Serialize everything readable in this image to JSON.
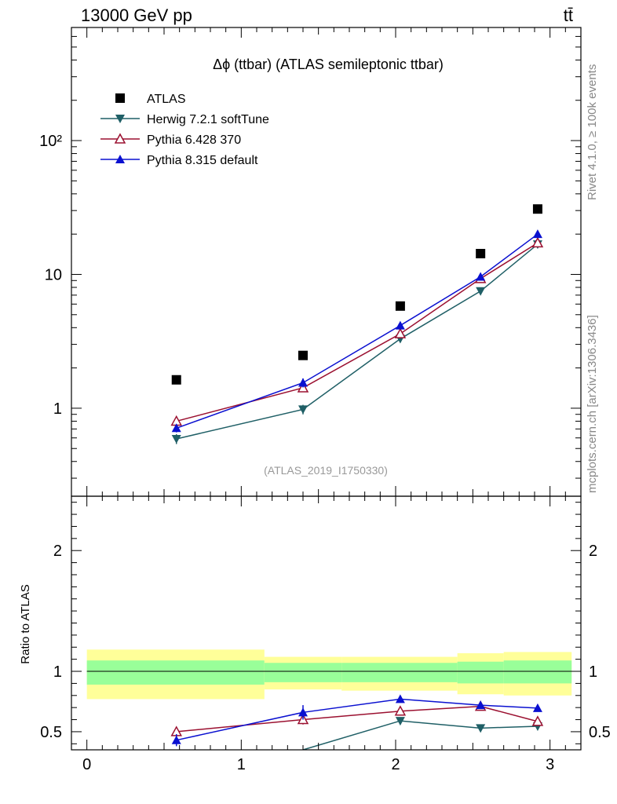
{
  "header": {
    "left": "13000 GeV pp",
    "right": "tt̄"
  },
  "side_labels": {
    "rivet": "Rivet 4.1.0, ≥ 100k events",
    "mcplots": "mcplots.cern.ch [arXiv:1306.3436]"
  },
  "colors": {
    "atlas": "#000000",
    "herwig": "#1f5f66",
    "pythia6": "#9b1030",
    "pythia8": "#0a10d0",
    "band_outer": "#ffff99",
    "band_inner": "#99ff99"
  },
  "chart_data": [
    {
      "type": "scatter",
      "title": "Δϕ (ttbar) (ATLAS semileptonic ttbar)",
      "analysis_label": "(ATLAS_2019_I1750330)",
      "yscale": "log",
      "ylim": [
        0.22,
        700
      ],
      "xlim": [
        -0.1,
        3.2
      ],
      "ytick_labels": [
        {
          "value": 1,
          "label": "1"
        },
        {
          "value": 10,
          "label": "10"
        },
        {
          "value": 100,
          "label": "10²"
        }
      ],
      "legend_position": "top-left",
      "series": [
        {
          "name": "ATLAS",
          "color_key": "atlas",
          "marker": "square",
          "line": false,
          "x": [
            0.58,
            1.4,
            2.03,
            2.55,
            2.92
          ],
          "y": [
            1.63,
            2.48,
            5.8,
            14.3,
            30.8
          ],
          "err": [
            0.02,
            0.03,
            0.06,
            0.15,
            0.3
          ]
        },
        {
          "name": "Herwig 7.2.1 softTune",
          "color_key": "herwig",
          "marker": "triangle-down",
          "line": true,
          "x": [
            0.58,
            1.4,
            2.03,
            2.55,
            2.92
          ],
          "y": [
            0.59,
            0.98,
            3.3,
            7.5,
            16.8
          ],
          "err": [
            0.05,
            0.08,
            0.12,
            0.2,
            0.3
          ]
        },
        {
          "name": "Pythia 6.428 370",
          "color_key": "pythia6",
          "marker": "triangle-up-open",
          "line": true,
          "x": [
            0.58,
            1.4,
            2.03,
            2.55,
            2.92
          ],
          "y": [
            0.8,
            1.42,
            3.6,
            9.3,
            17.2
          ],
          "err": [
            0.04,
            0.1,
            0.15,
            0.25,
            0.3
          ]
        },
        {
          "name": "Pythia 8.315 default",
          "color_key": "pythia8",
          "marker": "triangle-up",
          "line": true,
          "x": [
            0.58,
            1.4,
            2.03,
            2.55,
            2.92
          ],
          "y": [
            0.71,
            1.55,
            4.15,
            9.6,
            20.0
          ],
          "err": [
            0.05,
            0.12,
            0.15,
            0.25,
            0.3
          ]
        }
      ]
    },
    {
      "type": "scatter",
      "ylabel": "Ratio to ATLAS",
      "ylim": [
        0.35,
        2.45
      ],
      "xlim": [
        -0.1,
        3.2
      ],
      "xtick_labels": [
        {
          "value": 0,
          "label": "0"
        },
        {
          "value": 1,
          "label": "1"
        },
        {
          "value": 2,
          "label": "2"
        },
        {
          "value": 3,
          "label": "3"
        }
      ],
      "ytick_labels": [
        {
          "value": 0.5,
          "label": "0.5"
        },
        {
          "value": 1,
          "label": "1"
        },
        {
          "value": 2,
          "label": "2"
        }
      ],
      "reference": 1,
      "bands": [
        {
          "x0": 0.0,
          "x1": 1.15,
          "outer": [
            0.77,
            1.18
          ],
          "inner": [
            0.89,
            1.09
          ]
        },
        {
          "x0": 1.15,
          "x1": 1.65,
          "outer": [
            0.85,
            1.12
          ],
          "inner": [
            0.91,
            1.07
          ]
        },
        {
          "x0": 1.65,
          "x1": 2.4,
          "outer": [
            0.84,
            1.12
          ],
          "inner": [
            0.91,
            1.07
          ]
        },
        {
          "x0": 2.4,
          "x1": 2.7,
          "outer": [
            0.81,
            1.15
          ],
          "inner": [
            0.9,
            1.08
          ]
        },
        {
          "x0": 2.7,
          "x1": 3.14,
          "outer": [
            0.8,
            1.16
          ],
          "inner": [
            0.9,
            1.09
          ]
        }
      ],
      "series": [
        {
          "name": "Herwig 7.2.1 softTune",
          "color_key": "herwig",
          "marker": "triangle-down",
          "x": [
            0.58,
            1.4,
            2.03,
            2.55,
            2.92
          ],
          "y": [
            0.36,
            0.395,
            0.59,
            0.53,
            0.545
          ],
          "err": [
            0.0,
            0.0,
            0.02,
            0.02,
            0.01
          ],
          "line_from": [
            1.4,
            0.35
          ]
        },
        {
          "name": "Pythia 6.428 370",
          "color_key": "pythia6",
          "marker": "triangle-up-open",
          "x": [
            0.58,
            1.4,
            2.03,
            2.55,
            2.92
          ],
          "y": [
            0.5,
            0.6,
            0.67,
            0.71,
            0.585
          ],
          "err": [
            0.04,
            0.04,
            0.02,
            0.02,
            0.01
          ]
        },
        {
          "name": "Pythia 8.315 default",
          "color_key": "pythia8",
          "marker": "triangle-up",
          "x": [
            0.58,
            1.4,
            2.03,
            2.55,
            2.92
          ],
          "y": [
            0.43,
            0.66,
            0.77,
            0.72,
            0.695
          ],
          "err": [
            0.05,
            0.06,
            0.02,
            0.02,
            0.01
          ]
        }
      ]
    }
  ]
}
